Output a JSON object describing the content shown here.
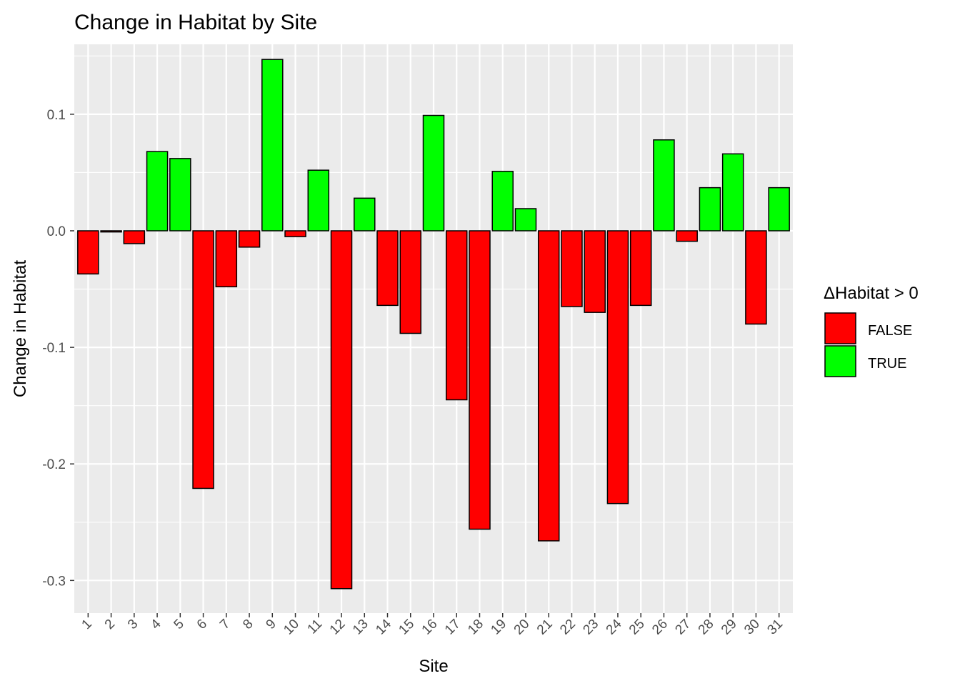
{
  "chart_data": {
    "type": "bar",
    "title": "Change in Habitat by Site",
    "xlabel": "Site",
    "ylabel": "Change in Habitat",
    "categories": [
      "1",
      "2",
      "3",
      "4",
      "5",
      "6",
      "7",
      "8",
      "9",
      "10",
      "11",
      "12",
      "13",
      "14",
      "15",
      "16",
      "17",
      "18",
      "19",
      "20",
      "21",
      "22",
      "23",
      "24",
      "25",
      "26",
      "27",
      "28",
      "29",
      "30",
      "31"
    ],
    "values": [
      -0.037,
      -0.001,
      -0.011,
      0.068,
      0.062,
      -0.221,
      -0.048,
      -0.014,
      0.147,
      -0.005,
      0.052,
      -0.307,
      0.028,
      -0.064,
      -0.088,
      0.099,
      -0.145,
      -0.256,
      0.051,
      0.019,
      -0.266,
      -0.065,
      -0.07,
      -0.234,
      -0.064,
      0.078,
      -0.009,
      0.037,
      0.066,
      -0.08,
      0.037
    ],
    "ylim": [
      -0.328,
      0.16
    ],
    "yticks": [
      0.1,
      0.0,
      -0.1,
      -0.2,
      -0.3
    ],
    "ytick_labels": [
      "0.1",
      "0.0",
      "-0.1",
      "-0.2",
      "-0.3"
    ],
    "grid": true,
    "legend": {
      "title": "ΔHabitat > 0",
      "position": "right",
      "entries": [
        {
          "label": "FALSE",
          "color": "#ff0000"
        },
        {
          "label": "TRUE",
          "color": "#00ff00"
        }
      ]
    },
    "colors": {
      "negative": "#ff0000",
      "positive": "#00ff00",
      "panel_background": "#ebebeb",
      "grid": "#ffffff",
      "bar_outline": "#000000"
    }
  }
}
